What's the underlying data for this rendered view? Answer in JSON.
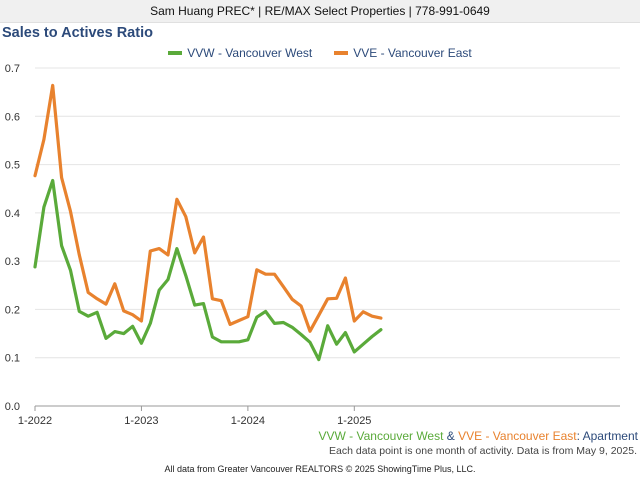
{
  "header": {
    "agent_line": "Sam Huang PREC* | RE/MAX Select Properties | 778-991-0649"
  },
  "colors": {
    "vvw": "#5aaa3a",
    "vve": "#e8822e",
    "title": "#2c4a7a",
    "grid": "#e4e4e4"
  },
  "footer": {
    "series_note_a": "VVW - Vancouver West",
    "series_note_amp": " & ",
    "series_note_b": "VVE - Vancouver East",
    "series_note_c": ": Apartment",
    "data_note": "Each data point is one month of activity. Data is from May 9, 2025.",
    "credits": "All data from Greater Vancouver REALTORS © 2025 ShowingTime Plus, LLC."
  },
  "chart_data": {
    "type": "line",
    "title": "Sales to Actives Ratio",
    "xlabel": "",
    "ylabel": "",
    "ylim": [
      0,
      0.7
    ],
    "y_ticks": [
      "0.0",
      "0.1",
      "0.2",
      "0.3",
      "0.4",
      "0.5",
      "0.6",
      "0.7"
    ],
    "x_ticks": [
      "1-2022",
      "1-2023",
      "1-2024",
      "1-2025"
    ],
    "x": [
      "2022-01",
      "2022-02",
      "2022-03",
      "2022-04",
      "2022-05",
      "2022-06",
      "2022-07",
      "2022-08",
      "2022-09",
      "2022-10",
      "2022-11",
      "2022-12",
      "2023-01",
      "2023-02",
      "2023-03",
      "2023-04",
      "2023-05",
      "2023-06",
      "2023-07",
      "2023-08",
      "2023-09",
      "2023-10",
      "2023-11",
      "2023-12",
      "2024-01",
      "2024-02",
      "2024-03",
      "2024-04",
      "2024-05",
      "2024-06",
      "2024-07",
      "2024-08",
      "2024-09",
      "2024-10",
      "2024-11",
      "2024-12",
      "2025-01",
      "2025-02",
      "2025-03",
      "2025-04"
    ],
    "grid": true,
    "legend_position": "top",
    "series": [
      {
        "name": "VVW - Vancouver West",
        "color": "#5aaa3a",
        "values": [
          0.288,
          0.412,
          0.467,
          0.332,
          0.281,
          0.196,
          0.186,
          0.194,
          0.14,
          0.154,
          0.15,
          0.165,
          0.13,
          0.171,
          0.24,
          0.262,
          0.326,
          0.27,
          0.209,
          0.212,
          0.143,
          0.133,
          0.133,
          0.133,
          0.137,
          0.184,
          0.196,
          0.171,
          0.173,
          0.163,
          0.148,
          0.132,
          0.096,
          0.166,
          0.128,
          0.152,
          0.112,
          0.128,
          0.144,
          0.158
        ]
      },
      {
        "name": "VVE - Vancouver East",
        "color": "#e8822e",
        "values": [
          0.477,
          0.552,
          0.664,
          0.473,
          0.403,
          0.313,
          0.235,
          0.222,
          0.211,
          0.253,
          0.197,
          0.189,
          0.176,
          0.321,
          0.326,
          0.313,
          0.428,
          0.392,
          0.317,
          0.35,
          0.222,
          0.218,
          0.169,
          0.177,
          0.185,
          0.282,
          0.273,
          0.273,
          0.247,
          0.221,
          0.207,
          0.155,
          0.188,
          0.222,
          0.223,
          0.265,
          0.176,
          0.195,
          0.186,
          0.182
        ]
      }
    ]
  }
}
